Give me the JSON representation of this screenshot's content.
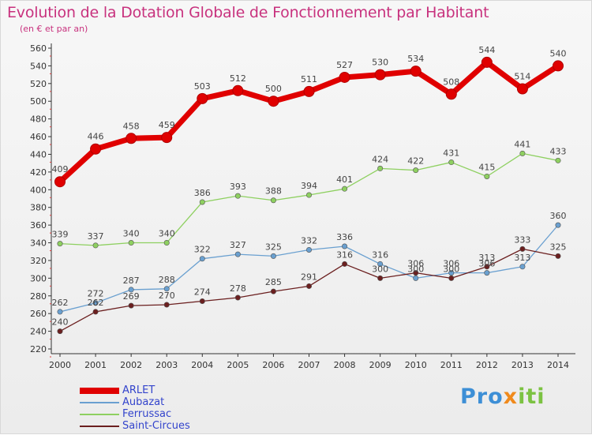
{
  "title": "Evolution de la Dotation Globale de Fonctionnement par Habitant",
  "subtitle": "(en € et par an)",
  "logo": {
    "part1": "Pro",
    "part2": "x",
    "part3": "iti"
  },
  "colors": {
    "ARLET": "#e00000",
    "Aubazat": "#6aa0d0",
    "Ferrussac": "#8ed060",
    "Saint-Circues": "#6b1f1f"
  },
  "chart_data": {
    "type": "line",
    "title": "Evolution de la Dotation Globale de Fonctionnement par Habitant",
    "ylabel": "(en € et par an)",
    "xlabel": "",
    "ylim": [
      220,
      560
    ],
    "yticks": [
      220,
      240,
      260,
      280,
      300,
      320,
      340,
      360,
      380,
      400,
      420,
      440,
      460,
      480,
      500,
      520,
      540,
      560
    ],
    "x": [
      "2000",
      "2001",
      "2002",
      "2003",
      "2004",
      "2005",
      "2006",
      "2007",
      "2008",
      "2009",
      "2010",
      "2011",
      "2012",
      "2013",
      "2014"
    ],
    "grid": false,
    "legend": "bottom-left",
    "series": [
      {
        "name": "ARLET",
        "values": [
          409,
          446,
          458,
          459,
          503,
          512,
          500,
          511,
          527,
          530,
          534,
          508,
          544,
          514,
          540
        ]
      },
      {
        "name": "Aubazat",
        "values": [
          262,
          272,
          287,
          288,
          322,
          327,
          325,
          332,
          336,
          316,
          300,
          306,
          306,
          313,
          360
        ]
      },
      {
        "name": "Ferrussac",
        "values": [
          339,
          337,
          340,
          340,
          386,
          393,
          388,
          394,
          401,
          424,
          422,
          431,
          415,
          441,
          433
        ]
      },
      {
        "name": "Saint-Circues",
        "values": [
          240,
          262,
          269,
          270,
          274,
          278,
          285,
          291,
          316,
          300,
          306,
          300,
          313,
          333,
          325
        ]
      }
    ]
  }
}
